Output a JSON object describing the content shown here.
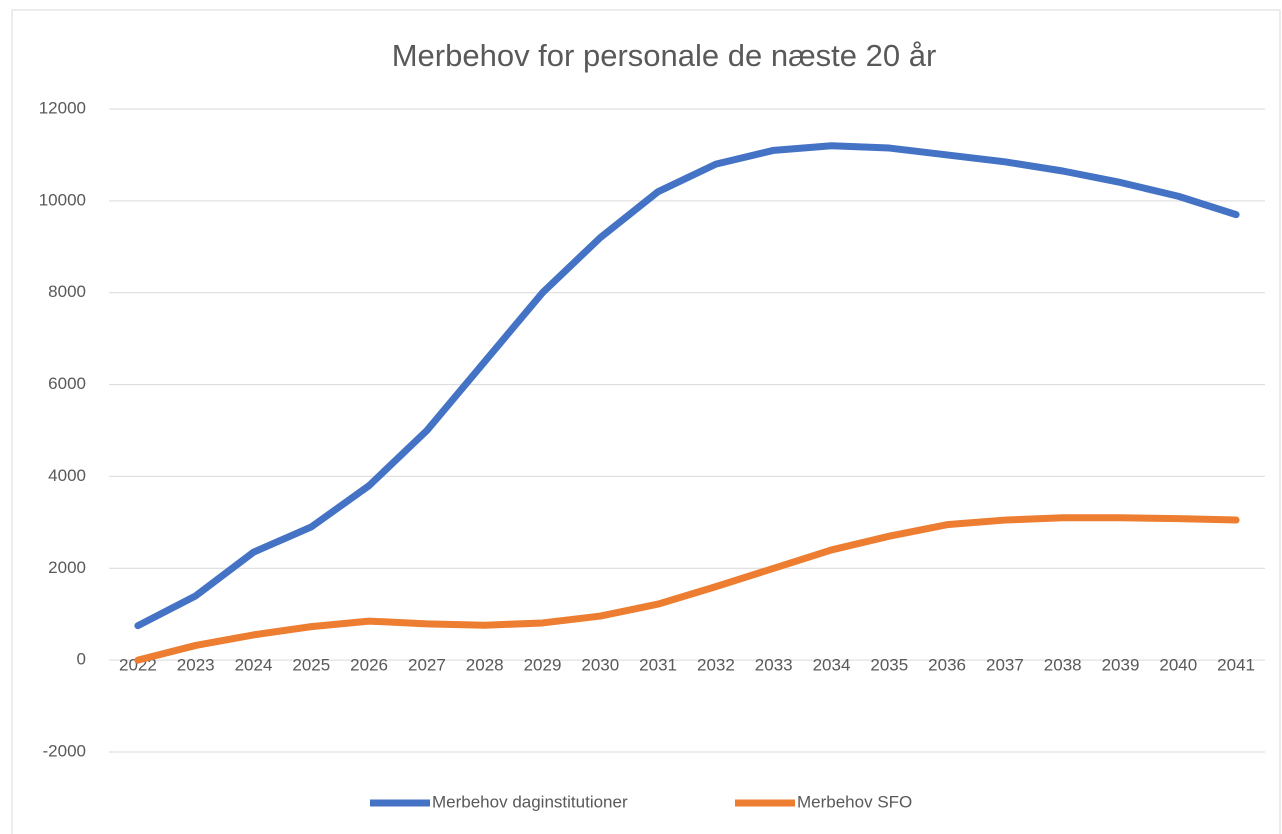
{
  "chart_data": {
    "type": "line",
    "title": "Merbehov for personale de næste 20 år",
    "categories": [
      "2022",
      "2023",
      "2024",
      "2025",
      "2026",
      "2027",
      "2028",
      "2029",
      "2030",
      "2031",
      "2032",
      "2033",
      "2034",
      "2035",
      "2036",
      "2037",
      "2038",
      "2039",
      "2040",
      "2041"
    ],
    "series": [
      {
        "name": "Merbehov daginstitutioner",
        "color": "#4472c4",
        "values": [
          750,
          1400,
          2350,
          2900,
          3800,
          5000,
          6500,
          8000,
          9200,
          10200,
          10800,
          11100,
          11200,
          11150,
          11000,
          10850,
          10650,
          10400,
          10100,
          9700
        ]
      },
      {
        "name": "Merbehov SFO",
        "color": "#ed7d31",
        "values": [
          0,
          320,
          550,
          730,
          850,
          790,
          760,
          810,
          960,
          1220,
          1600,
          2000,
          2400,
          2700,
          2950,
          3050,
          3100,
          3100,
          3080,
          3050
        ]
      }
    ],
    "ylim": [
      -2000,
      12000
    ],
    "yticks": [
      -2000,
      0,
      2000,
      4000,
      6000,
      8000,
      10000,
      12000
    ],
    "grid": true,
    "legend": "bottom"
  }
}
